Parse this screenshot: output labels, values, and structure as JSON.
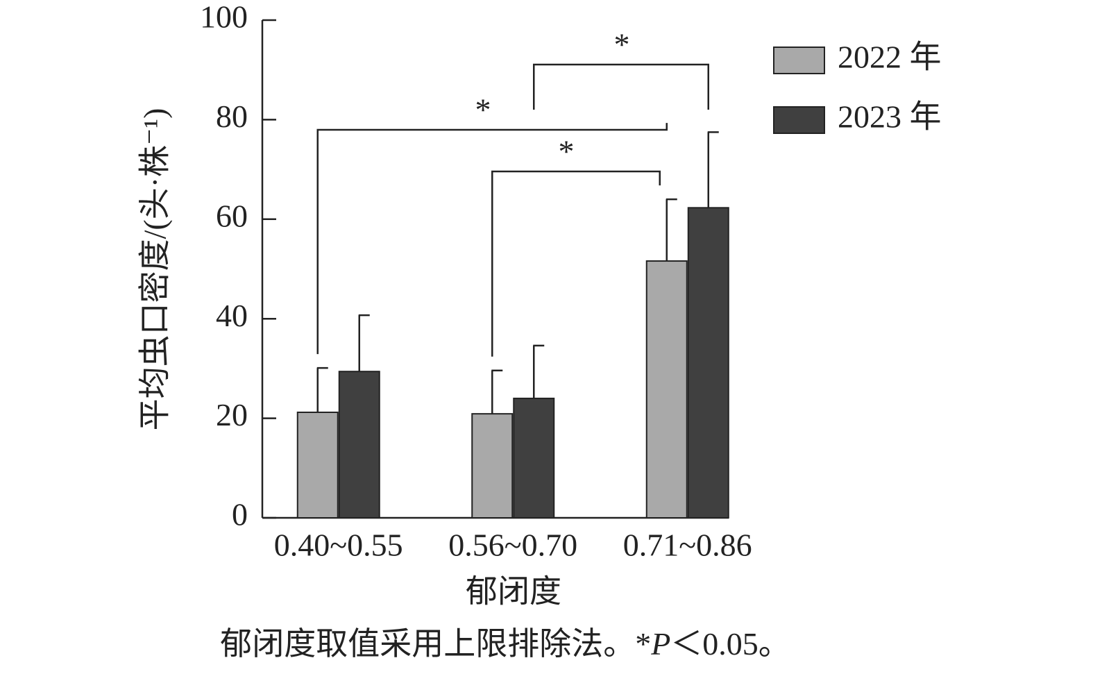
{
  "chart_data": {
    "type": "bar",
    "y_label": "平均虫口密度/(头·株⁻¹)",
    "x_label": "郁闭度",
    "note": [
      "郁闭度取值采用上限排除法。*",
      "P",
      "＜0.05。"
    ],
    "categories": [
      "0.40~0.55",
      "0.56~0.70",
      "0.71~0.86"
    ],
    "series": [
      {
        "name": "2022 年",
        "color": "#a9a9a9",
        "values": [
          21.2,
          20.9,
          51.6
        ],
        "errors": [
          8.9,
          8.7,
          12.4
        ]
      },
      {
        "name": "2023 年",
        "color": "#404040",
        "values": [
          29.4,
          24.0,
          62.3
        ],
        "errors": [
          11.3,
          10.6,
          15.2
        ]
      }
    ],
    "ylim": [
      0,
      100
    ],
    "yticks": [
      0,
      20,
      40,
      60,
      80,
      100
    ],
    "significance": [
      {
        "from": [
          0,
          0
        ],
        "to": [
          0,
          2
        ],
        "label": "*"
      },
      {
        "from": [
          0,
          1
        ],
        "to": [
          0,
          2
        ],
        "label": "*"
      },
      {
        "from": [
          1,
          1
        ],
        "to": [
          1,
          2
        ],
        "label": "*"
      }
    ],
    "legend": "top-right"
  }
}
